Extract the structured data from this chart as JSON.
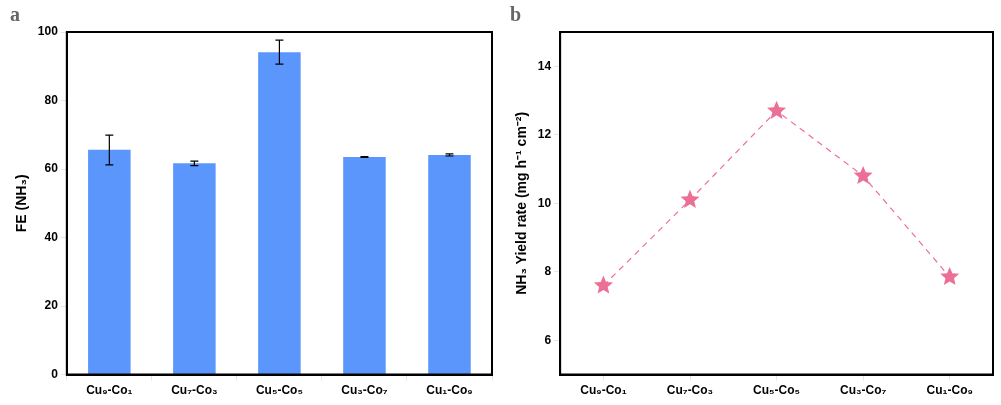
{
  "chart_data": [
    {
      "type": "bar",
      "title": "a",
      "ylabel": "FE (NH₃)",
      "categories": [
        "Cu₉-Co₁",
        "Cu₇-Co₃",
        "Cu₅-Co₅",
        "Cu₃-Co₇",
        "Cu₁-Co₉"
      ],
      "values": [
        65.6,
        61.7,
        94.1,
        63.5,
        64.1
      ],
      "errors": [
        [
          61.2,
          69.9
        ],
        [
          61.0,
          62.3
        ],
        [
          90.6,
          97.6
        ],
        [
          63.4,
          63.6
        ],
        [
          63.8,
          64.4
        ]
      ],
      "color": "#5b96fc",
      "ylim": [
        0,
        100
      ],
      "yticks": [
        0,
        20,
        40,
        60,
        80,
        100
      ],
      "grid": false,
      "legend": false
    },
    {
      "type": "line",
      "title": "b",
      "ylabel": "NH₃ Yield rate (mg h⁻¹ cm⁻²)",
      "categories": [
        "Cu₉-Co₁",
        "Cu₇-Co₃",
        "Cu₅-Co₅",
        "Cu₃-Co₇",
        "Cu₁-Co₉"
      ],
      "values": [
        7.6,
        10.1,
        12.7,
        10.8,
        7.85
      ],
      "color": "#ec6f96",
      "marker": "star",
      "line_style": "dashed",
      "ylim": [
        5,
        15
      ],
      "yticks": [
        6,
        8,
        10,
        12,
        14
      ],
      "grid": false,
      "legend": false
    }
  ]
}
